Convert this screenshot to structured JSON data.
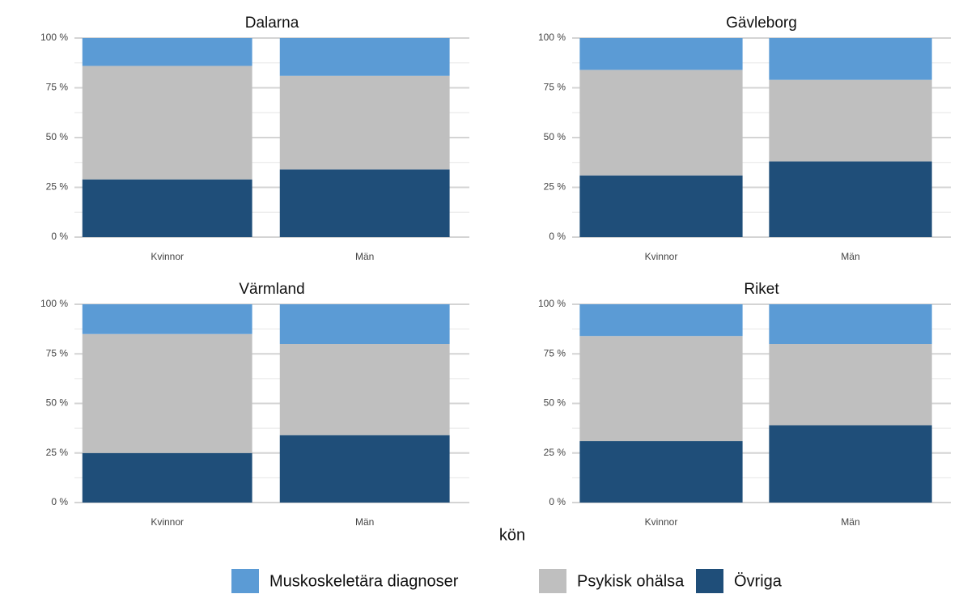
{
  "xlabel": "kön",
  "chart_data": [
    {
      "type": "bar",
      "stacked": true,
      "title": "Dalarna",
      "categories": [
        "Kvinnor",
        "Män"
      ],
      "series": [
        {
          "name": "Muskoskeletära diagnoser",
          "color": "#5b9bd5",
          "values": [
            14,
            19
          ]
        },
        {
          "name": "Psykisk ohälsa",
          "color": "#bfbfbf",
          "values": [
            57,
            47
          ]
        },
        {
          "name": "Övriga",
          "color": "#1f4e79",
          "values": [
            29,
            34
          ]
        }
      ],
      "ylim": [
        0,
        100
      ],
      "yticks": [
        {
          "value": 0,
          "label": "0 %"
        },
        {
          "value": 25,
          "label": "25 %"
        },
        {
          "value": 50,
          "label": "50 %"
        },
        {
          "value": 75,
          "label": "75 %"
        },
        {
          "value": 100,
          "label": "100 %"
        }
      ],
      "grid": true
    },
    {
      "type": "bar",
      "stacked": true,
      "title": "Gävleborg",
      "categories": [
        "Kvinnor",
        "Män"
      ],
      "series": [
        {
          "name": "Muskoskeletära diagnoser",
          "color": "#5b9bd5",
          "values": [
            16,
            21
          ]
        },
        {
          "name": "Psykisk ohälsa",
          "color": "#bfbfbf",
          "values": [
            53,
            41
          ]
        },
        {
          "name": "Övriga",
          "color": "#1f4e79",
          "values": [
            31,
            38
          ]
        }
      ],
      "ylim": [
        0,
        100
      ],
      "yticks": [
        {
          "value": 0,
          "label": "0 %"
        },
        {
          "value": 25,
          "label": "25 %"
        },
        {
          "value": 50,
          "label": "50 %"
        },
        {
          "value": 75,
          "label": "75 %"
        },
        {
          "value": 100,
          "label": "100 %"
        }
      ],
      "grid": true
    },
    {
      "type": "bar",
      "stacked": true,
      "title": "Värmland",
      "categories": [
        "Kvinnor",
        "Män"
      ],
      "series": [
        {
          "name": "Muskoskeletära diagnoser",
          "color": "#5b9bd5",
          "values": [
            15,
            20
          ]
        },
        {
          "name": "Psykisk ohälsa",
          "color": "#bfbfbf",
          "values": [
            60,
            46
          ]
        },
        {
          "name": "Övriga",
          "color": "#1f4e79",
          "values": [
            25,
            34
          ]
        }
      ],
      "ylim": [
        0,
        100
      ],
      "yticks": [
        {
          "value": 0,
          "label": "0 %"
        },
        {
          "value": 25,
          "label": "25 %"
        },
        {
          "value": 50,
          "label": "50 %"
        },
        {
          "value": 75,
          "label": "75 %"
        },
        {
          "value": 100,
          "label": "100 %"
        }
      ],
      "grid": true
    },
    {
      "type": "bar",
      "stacked": true,
      "title": "Riket",
      "categories": [
        "Kvinnor",
        "Män"
      ],
      "series": [
        {
          "name": "Muskoskeletära diagnoser",
          "color": "#5b9bd5",
          "values": [
            16,
            20
          ]
        },
        {
          "name": "Psykisk ohälsa",
          "color": "#bfbfbf",
          "values": [
            53,
            41
          ]
        },
        {
          "name": "Övriga",
          "color": "#1f4e79",
          "values": [
            31,
            39
          ]
        }
      ],
      "ylim": [
        0,
        100
      ],
      "yticks": [
        {
          "value": 0,
          "label": "0 %"
        },
        {
          "value": 25,
          "label": "25 %"
        },
        {
          "value": 50,
          "label": "50 %"
        },
        {
          "value": 75,
          "label": "75 %"
        },
        {
          "value": 100,
          "label": "100 %"
        }
      ],
      "grid": true
    }
  ]
}
